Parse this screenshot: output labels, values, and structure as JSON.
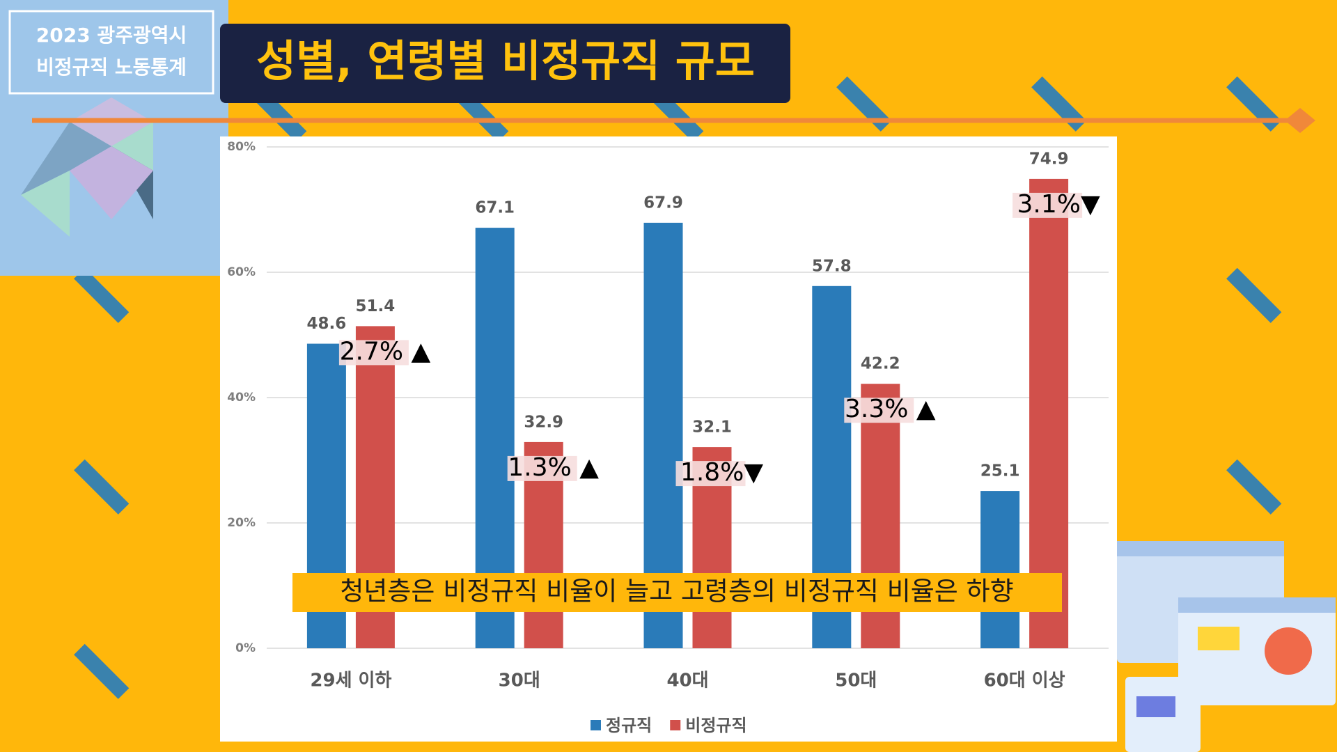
{
  "header": {
    "line1": "2023 광주광역시",
    "line2": "비정규직 노동통계",
    "title": "성별, 연령별 비정규직 규모"
  },
  "chart_data": {
    "type": "bar",
    "categories": [
      "29세 이하",
      "30대",
      "40대",
      "50대",
      "60대 이상"
    ],
    "series": [
      {
        "name": "정규직",
        "color": "#2a7bb9",
        "values": [
          48.6,
          67.1,
          67.9,
          57.8,
          25.1
        ]
      },
      {
        "name": "비정규직",
        "color": "#d1504b",
        "values": [
          51.4,
          32.9,
          32.1,
          42.2,
          74.9
        ]
      }
    ],
    "ylim": [
      0,
      80
    ],
    "yticks": [
      {
        "value": 0,
        "label": "0%"
      },
      {
        "value": 20,
        "label": "20%"
      },
      {
        "value": 40,
        "label": "40%"
      },
      {
        "value": 60,
        "label": "60%"
      },
      {
        "value": 80,
        "label": "80%"
      }
    ],
    "grid": true,
    "legend": "bottom",
    "annotations": [
      "2.7% ▲",
      "1.3% ▲",
      "1.8%▼",
      "3.3% ▲",
      "3.1%▼"
    ],
    "caption": "청년층은 비정규직 비율이 늘고 고령층의 비정규직 비율은 하향"
  }
}
